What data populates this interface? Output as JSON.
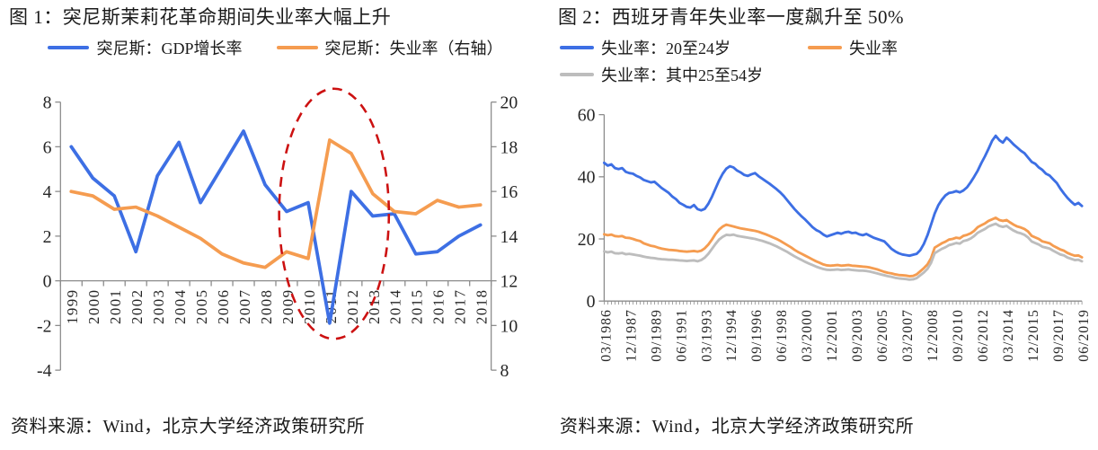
{
  "colors": {
    "blue": "#3D6FE4",
    "orange": "#F59C50",
    "gray": "#BDBDBD",
    "red": "#CC1111",
    "axis": "#8C8C8C",
    "tick_text": "#262626"
  },
  "panels": [
    {
      "title": "图 1：突尼斯茉莉花革命期间失业率大幅上升",
      "legend": [
        {
          "label": "突尼斯：GDP增长率",
          "color": "blue"
        },
        {
          "label": "突尼斯：失业率（右轴）",
          "color": "orange"
        }
      ],
      "source": "资料来源：Wind，北京大学经济政策研究所"
    },
    {
      "title": "图 2：西班牙青年失业率一度飙升至 50%",
      "legend": [
        {
          "label": "失业率：20至24岁",
          "color": "blue"
        },
        {
          "label": "失业率",
          "color": "orange"
        },
        {
          "label": "失业率：其中25至54岁",
          "color": "gray"
        }
      ],
      "source": "资料来源：Wind，北京大学经济政策研究所"
    }
  ],
  "chart_data": [
    {
      "type": "line",
      "title": "图 1：突尼斯茉莉花革命期间失业率大幅上升",
      "categories": [
        "1999",
        "2000",
        "2001",
        "2002",
        "2003",
        "2004",
        "2005",
        "2006",
        "2007",
        "2008",
        "2009",
        "2010",
        "2011",
        "2012",
        "2013",
        "2014",
        "2015",
        "2016",
        "2017",
        "2018"
      ],
      "ylim_left": [
        -4,
        8
      ],
      "yticks_left": [
        8,
        6,
        4,
        2,
        0,
        -2,
        -4
      ],
      "ylim_right": [
        8,
        20
      ],
      "yticks_right": [
        20,
        18,
        16,
        14,
        12,
        10,
        8
      ],
      "x_axis_at": 0,
      "grid": false,
      "legend_position": "top",
      "series": [
        {
          "name": "突尼斯：GDP增长率",
          "axis": "left",
          "color": "blue",
          "values": [
            6.0,
            4.6,
            3.8,
            1.3,
            4.7,
            6.2,
            3.5,
            5.1,
            6.7,
            4.3,
            3.1,
            3.5,
            -1.9,
            4.0,
            2.9,
            3.0,
            1.2,
            1.3,
            2.0,
            2.5
          ]
        },
        {
          "name": "突尼斯：失业率（右轴）",
          "axis": "right",
          "color": "orange",
          "values": [
            16.0,
            15.8,
            15.2,
            15.3,
            14.9,
            14.4,
            13.9,
            13.2,
            12.8,
            12.6,
            13.3,
            13.0,
            18.3,
            17.7,
            15.9,
            15.1,
            15.0,
            15.6,
            15.3,
            15.4
          ]
        }
      ],
      "annotation": {
        "shape": "ellipse",
        "style": "dashed",
        "color": "red",
        "cx_category": 12.2,
        "cy_value": 3.0,
        "rx_categories": 2.55,
        "ry_value_units": 5.6
      }
    },
    {
      "type": "line",
      "title": "图 2：西班牙青年失业率一度飙升至 50%",
      "n_points": 134,
      "x_frequency": "quarterly",
      "x_tick_labels": [
        "03/1986",
        "12/1987",
        "09/1989",
        "06/1991",
        "03/1993",
        "12/1994",
        "09/1996",
        "06/1998",
        "03/2000",
        "12/2001",
        "09/2003",
        "06/2005",
        "03/2007",
        "12/2008",
        "09/2010",
        "06/2012",
        "03/2014",
        "12/2015",
        "09/2017",
        "06/2019"
      ],
      "x_tick_label_indices": [
        0,
        7,
        14,
        21,
        28,
        35,
        42,
        49,
        56,
        63,
        70,
        77,
        84,
        91,
        98,
        105,
        112,
        119,
        126,
        133
      ],
      "ylim": [
        0,
        60
      ],
      "yticks": [
        0,
        20,
        40,
        60
      ],
      "x_axis_at": 0,
      "grid": false,
      "legend_position": "top",
      "series": [
        {
          "name": "失业率：20至24岁",
          "axis": "left",
          "color": "blue",
          "values": [
            44.5,
            43.6,
            44.0,
            42.8,
            42.5,
            42.8,
            41.6,
            41.2,
            41.0,
            40.3,
            39.8,
            39.0,
            38.6,
            38.2,
            38.4,
            37.4,
            36.4,
            35.6,
            34.8,
            33.6,
            32.8,
            31.6,
            31.0,
            30.3,
            30.1,
            30.9,
            29.6,
            29.2,
            29.7,
            31.3,
            33.6,
            36.2,
            38.8,
            41.0,
            42.6,
            43.4,
            43.0,
            42.0,
            41.4,
            40.6,
            40.3,
            40.8,
            41.2,
            40.2,
            39.4,
            38.6,
            37.8,
            36.9,
            36.0,
            35.0,
            33.8,
            32.4,
            31.0,
            29.6,
            28.4,
            27.2,
            26.2,
            25.0,
            23.8,
            22.9,
            22.3,
            21.4,
            20.8,
            21.2,
            21.6,
            22.0,
            21.7,
            22.1,
            22.3,
            21.9,
            22.0,
            21.5,
            21.2,
            21.6,
            21.0,
            20.4,
            20.0,
            19.6,
            19.2,
            18.0,
            16.8,
            16.0,
            15.4,
            15.0,
            14.8,
            14.6,
            14.9,
            15.2,
            16.4,
            18.4,
            21.2,
            24.6,
            28.2,
            30.8,
            32.6,
            34.0,
            34.8,
            35.0,
            35.4,
            35.0,
            35.6,
            36.6,
            38.2,
            40.0,
            42.0,
            44.4,
            46.6,
            49.0,
            51.6,
            53.2,
            51.8,
            51.0,
            52.6,
            51.6,
            50.4,
            49.4,
            48.4,
            47.6,
            46.2,
            44.8,
            44.2,
            43.0,
            42.2,
            41.0,
            40.4,
            39.2,
            38.0,
            36.2,
            34.6,
            33.2,
            32.0,
            31.0,
            31.6,
            30.6
          ]
        },
        {
          "name": "失业率",
          "axis": "left",
          "color": "orange",
          "values": [
            21.5,
            21.2,
            21.4,
            20.9,
            20.8,
            20.9,
            20.4,
            20.3,
            20.0,
            19.6,
            19.3,
            18.6,
            18.2,
            17.8,
            17.6,
            17.2,
            16.9,
            16.7,
            16.5,
            16.4,
            16.3,
            16.1,
            16.0,
            15.9,
            16.0,
            16.1,
            15.9,
            16.2,
            17.0,
            18.2,
            19.8,
            21.6,
            23.0,
            24.0,
            24.6,
            24.3,
            24.0,
            23.7,
            23.4,
            23.2,
            23.0,
            22.8,
            22.6,
            22.3,
            21.9,
            21.5,
            21.0,
            20.5,
            20.0,
            19.4,
            18.7,
            18.0,
            17.3,
            16.5,
            15.8,
            15.2,
            14.6,
            14.0,
            13.4,
            12.8,
            12.3,
            11.8,
            11.5,
            11.4,
            11.5,
            11.6,
            11.4,
            11.5,
            11.6,
            11.4,
            11.3,
            11.2,
            11.1,
            11.0,
            10.8,
            10.5,
            10.2,
            9.8,
            9.4,
            9.1,
            8.9,
            8.6,
            8.4,
            8.3,
            8.2,
            8.0,
            8.1,
            8.6,
            9.6,
            10.6,
            11.8,
            13.8,
            17.2,
            17.9,
            18.6,
            19.1,
            19.8,
            20.0,
            20.4,
            20.2,
            21.0,
            21.3,
            21.8,
            22.6,
            23.8,
            24.4,
            25.0,
            25.8,
            26.3,
            26.8,
            26.1,
            25.8,
            26.1,
            25.3,
            24.6,
            24.0,
            23.7,
            23.2,
            22.4,
            21.0,
            20.5,
            20.0,
            19.2,
            18.9,
            18.6,
            17.8,
            17.2,
            16.6,
            16.2,
            15.5,
            15.0,
            14.6,
            14.7,
            14.1
          ]
        },
        {
          "name": "失业率：其中25至54岁",
          "axis": "left",
          "color": "gray",
          "values": [
            16.0,
            15.7,
            15.9,
            15.4,
            15.3,
            15.5,
            15.1,
            15.2,
            15.0,
            14.8,
            14.6,
            14.3,
            14.1,
            13.9,
            13.8,
            13.6,
            13.5,
            13.4,
            13.3,
            13.3,
            13.2,
            13.1,
            13.0,
            12.9,
            13.0,
            13.1,
            12.8,
            13.2,
            14.0,
            15.2,
            16.8,
            18.4,
            19.8,
            20.7,
            21.3,
            21.2,
            21.4,
            21.0,
            20.8,
            20.6,
            20.4,
            20.2,
            20.0,
            19.7,
            19.4,
            19.0,
            18.6,
            18.1,
            17.6,
            17.0,
            16.4,
            15.8,
            15.1,
            14.4,
            13.8,
            13.2,
            12.6,
            12.1,
            11.6,
            11.1,
            10.7,
            10.3,
            10.1,
            10.0,
            10.1,
            10.2,
            10.0,
            10.1,
            10.2,
            10.0,
            9.9,
            9.8,
            9.8,
            9.7,
            9.5,
            9.2,
            8.9,
            8.6,
            8.3,
            8.0,
            7.8,
            7.5,
            7.3,
            7.2,
            7.1,
            6.9,
            7.0,
            7.4,
            8.3,
            9.2,
            10.4,
            12.3,
            15.4,
            16.1,
            16.8,
            17.3,
            18.0,
            18.3,
            18.7,
            18.5,
            19.3,
            19.6,
            20.1,
            20.9,
            22.0,
            22.6,
            23.2,
            24.0,
            24.5,
            24.9,
            24.2,
            23.9,
            24.2,
            23.4,
            22.7,
            22.1,
            21.8,
            21.3,
            20.5,
            19.2,
            18.7,
            18.2,
            17.5,
            17.2,
            16.9,
            16.2,
            15.6,
            15.0,
            14.7,
            14.0,
            13.6,
            13.2,
            13.3,
            12.8
          ]
        }
      ]
    }
  ]
}
